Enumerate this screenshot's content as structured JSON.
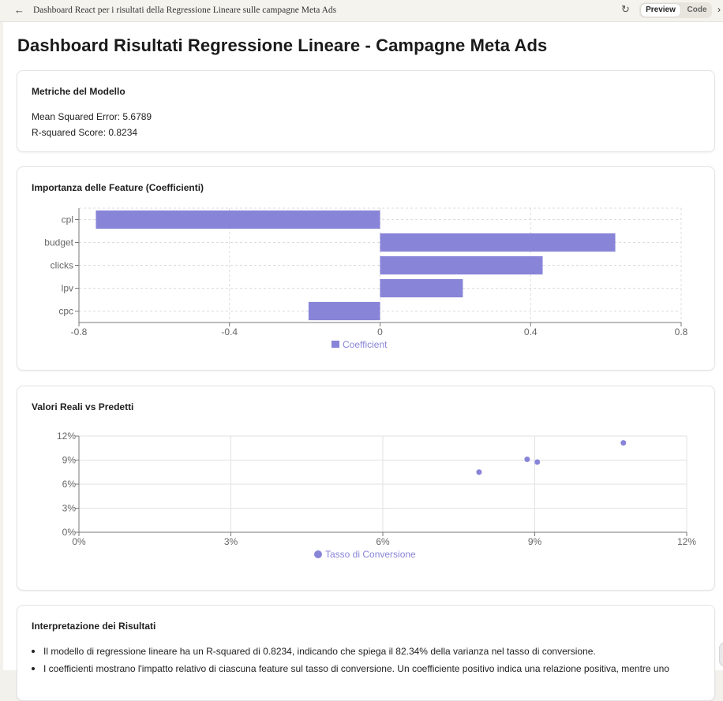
{
  "topbar": {
    "back_icon": "arrow-left-icon",
    "title": "Dashboard React per i risultati della Regressione Lineare sulle campagne Meta Ads",
    "refresh_icon": "refresh-icon",
    "preview_label": "Preview",
    "code_label": "Code",
    "more_icon": "chevron-right-icon"
  },
  "page": {
    "title": "Dashboard Risultati Regressione Lineare - Campagne Meta Ads"
  },
  "metrics": {
    "title": "Metriche del Modello",
    "mse": "Mean Squared Error: 5.6789",
    "r2": "R-squared Score: 0.8234"
  },
  "feature_card": {
    "title": "Importanza delle Feature (Coefficienti)"
  },
  "scatter_card": {
    "title": "Valori Reali vs Predetti"
  },
  "chart_data": [
    {
      "type": "bar",
      "orientation": "horizontal",
      "categories": [
        "cpl",
        "budget",
        "clicks",
        "lpv",
        "cpc"
      ],
      "series": [
        {
          "name": "Coefficient",
          "values": [
            -0.755,
            0.625,
            0.432,
            0.22,
            -0.19
          ]
        }
      ],
      "xlim": [
        -0.8,
        0.8
      ],
      "xticks": [
        "-0.8",
        "-0.4",
        "0",
        "0.4",
        "0.8"
      ],
      "grid": true,
      "legend": "bottom",
      "color": "#8884d8"
    },
    {
      "type": "scatter",
      "series": [
        {
          "name": "Tasso di Conversione",
          "points": [
            [
              7.9,
              7.5
            ],
            [
              8.85,
              9.1
            ],
            [
              9.05,
              8.75
            ],
            [
              10.75,
              11.15
            ]
          ]
        }
      ],
      "xlim": [
        0,
        12
      ],
      "ylim": [
        0,
        12
      ],
      "xticks": [
        "0%",
        "3%",
        "6%",
        "9%",
        "12%"
      ],
      "yticks": [
        "0%",
        "3%",
        "6%",
        "9%",
        "12%"
      ],
      "grid": true,
      "legend": "bottom",
      "color": "#8884d8"
    }
  ],
  "interpretation": {
    "title": "Interpretazione dei Risultati",
    "bullets": [
      "Il modello di regressione lineare ha un R-squared di 0.8234, indicando che spiega il 82.34% della varianza nel tasso di conversione.",
      "I coefficienti mostrano l'impatto relativo di ciascuna feature sul tasso di conversione. Un coefficiente positivo indica una relazione positiva, mentre uno"
    ]
  }
}
